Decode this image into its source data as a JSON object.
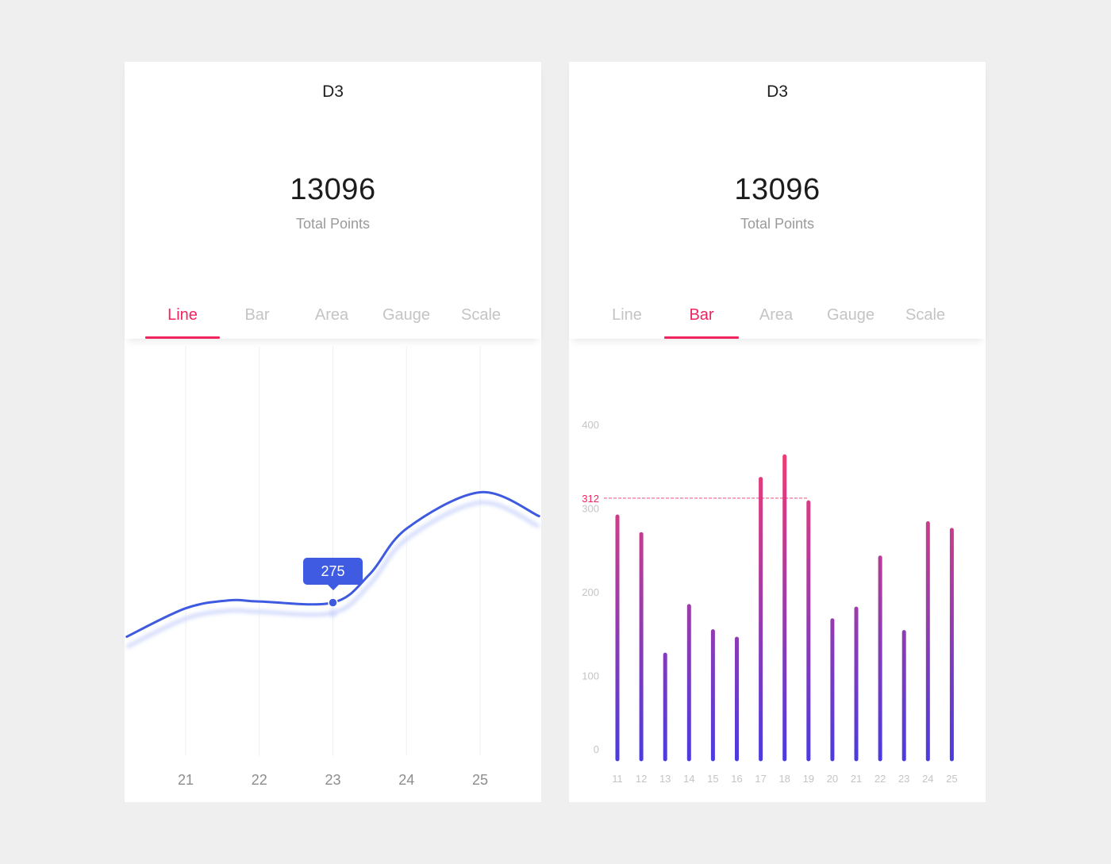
{
  "cards": [
    {
      "title": "D3",
      "total_value": "13096",
      "total_label": "Total Points",
      "tabs": [
        "Line",
        "Bar",
        "Area",
        "Gauge",
        "Scale"
      ],
      "active_tab": "Line"
    },
    {
      "title": "D3",
      "total_value": "13096",
      "total_label": "Total Points",
      "tabs": [
        "Line",
        "Bar",
        "Area",
        "Gauge",
        "Scale"
      ],
      "active_tab": "Bar"
    }
  ],
  "chart_data": [
    {
      "type": "line",
      "x": [
        21,
        22,
        23,
        24,
        25
      ],
      "x_tick_labels": [
        "21",
        "22",
        "23",
        "24",
        "25"
      ],
      "curve_points": [
        {
          "x": 20.2,
          "y": 245
        },
        {
          "x": 21,
          "y": 270
        },
        {
          "x": 21.6,
          "y": 277
        },
        {
          "x": 22,
          "y": 276
        },
        {
          "x": 23,
          "y": 275
        },
        {
          "x": 23.5,
          "y": 300
        },
        {
          "x": 24,
          "y": 340
        },
        {
          "x": 25,
          "y": 372
        },
        {
          "x": 25.8,
          "y": 351
        }
      ],
      "highlight": {
        "x": 23,
        "y": 275,
        "label": "275"
      },
      "ylim": [
        140,
        500
      ],
      "xlim": [
        20.17,
        25.83
      ],
      "grid": "vertical",
      "line_color": "#3d5ae0",
      "shadow_color": "#c8d2fb"
    },
    {
      "type": "bar",
      "categories": [
        "11",
        "12",
        "13",
        "14",
        "15",
        "16",
        "17",
        "18",
        "19",
        "20",
        "21",
        "22",
        "23",
        "24",
        "25"
      ],
      "values": [
        290,
        269,
        125,
        183,
        153,
        144,
        335,
        362,
        307,
        166,
        180,
        241,
        152,
        282,
        274
      ],
      "y_ticks": [
        0,
        100,
        200,
        300,
        400
      ],
      "y_tick_labels": [
        "0",
        "100",
        "200",
        "300",
        "400"
      ],
      "reference_line": {
        "value": 312,
        "label": "312"
      },
      "ylim": [
        0,
        400
      ],
      "gradient_top": "#fb3c6b",
      "gradient_bottom": "#4b3be0",
      "reference_color": "#f0245f"
    }
  ]
}
